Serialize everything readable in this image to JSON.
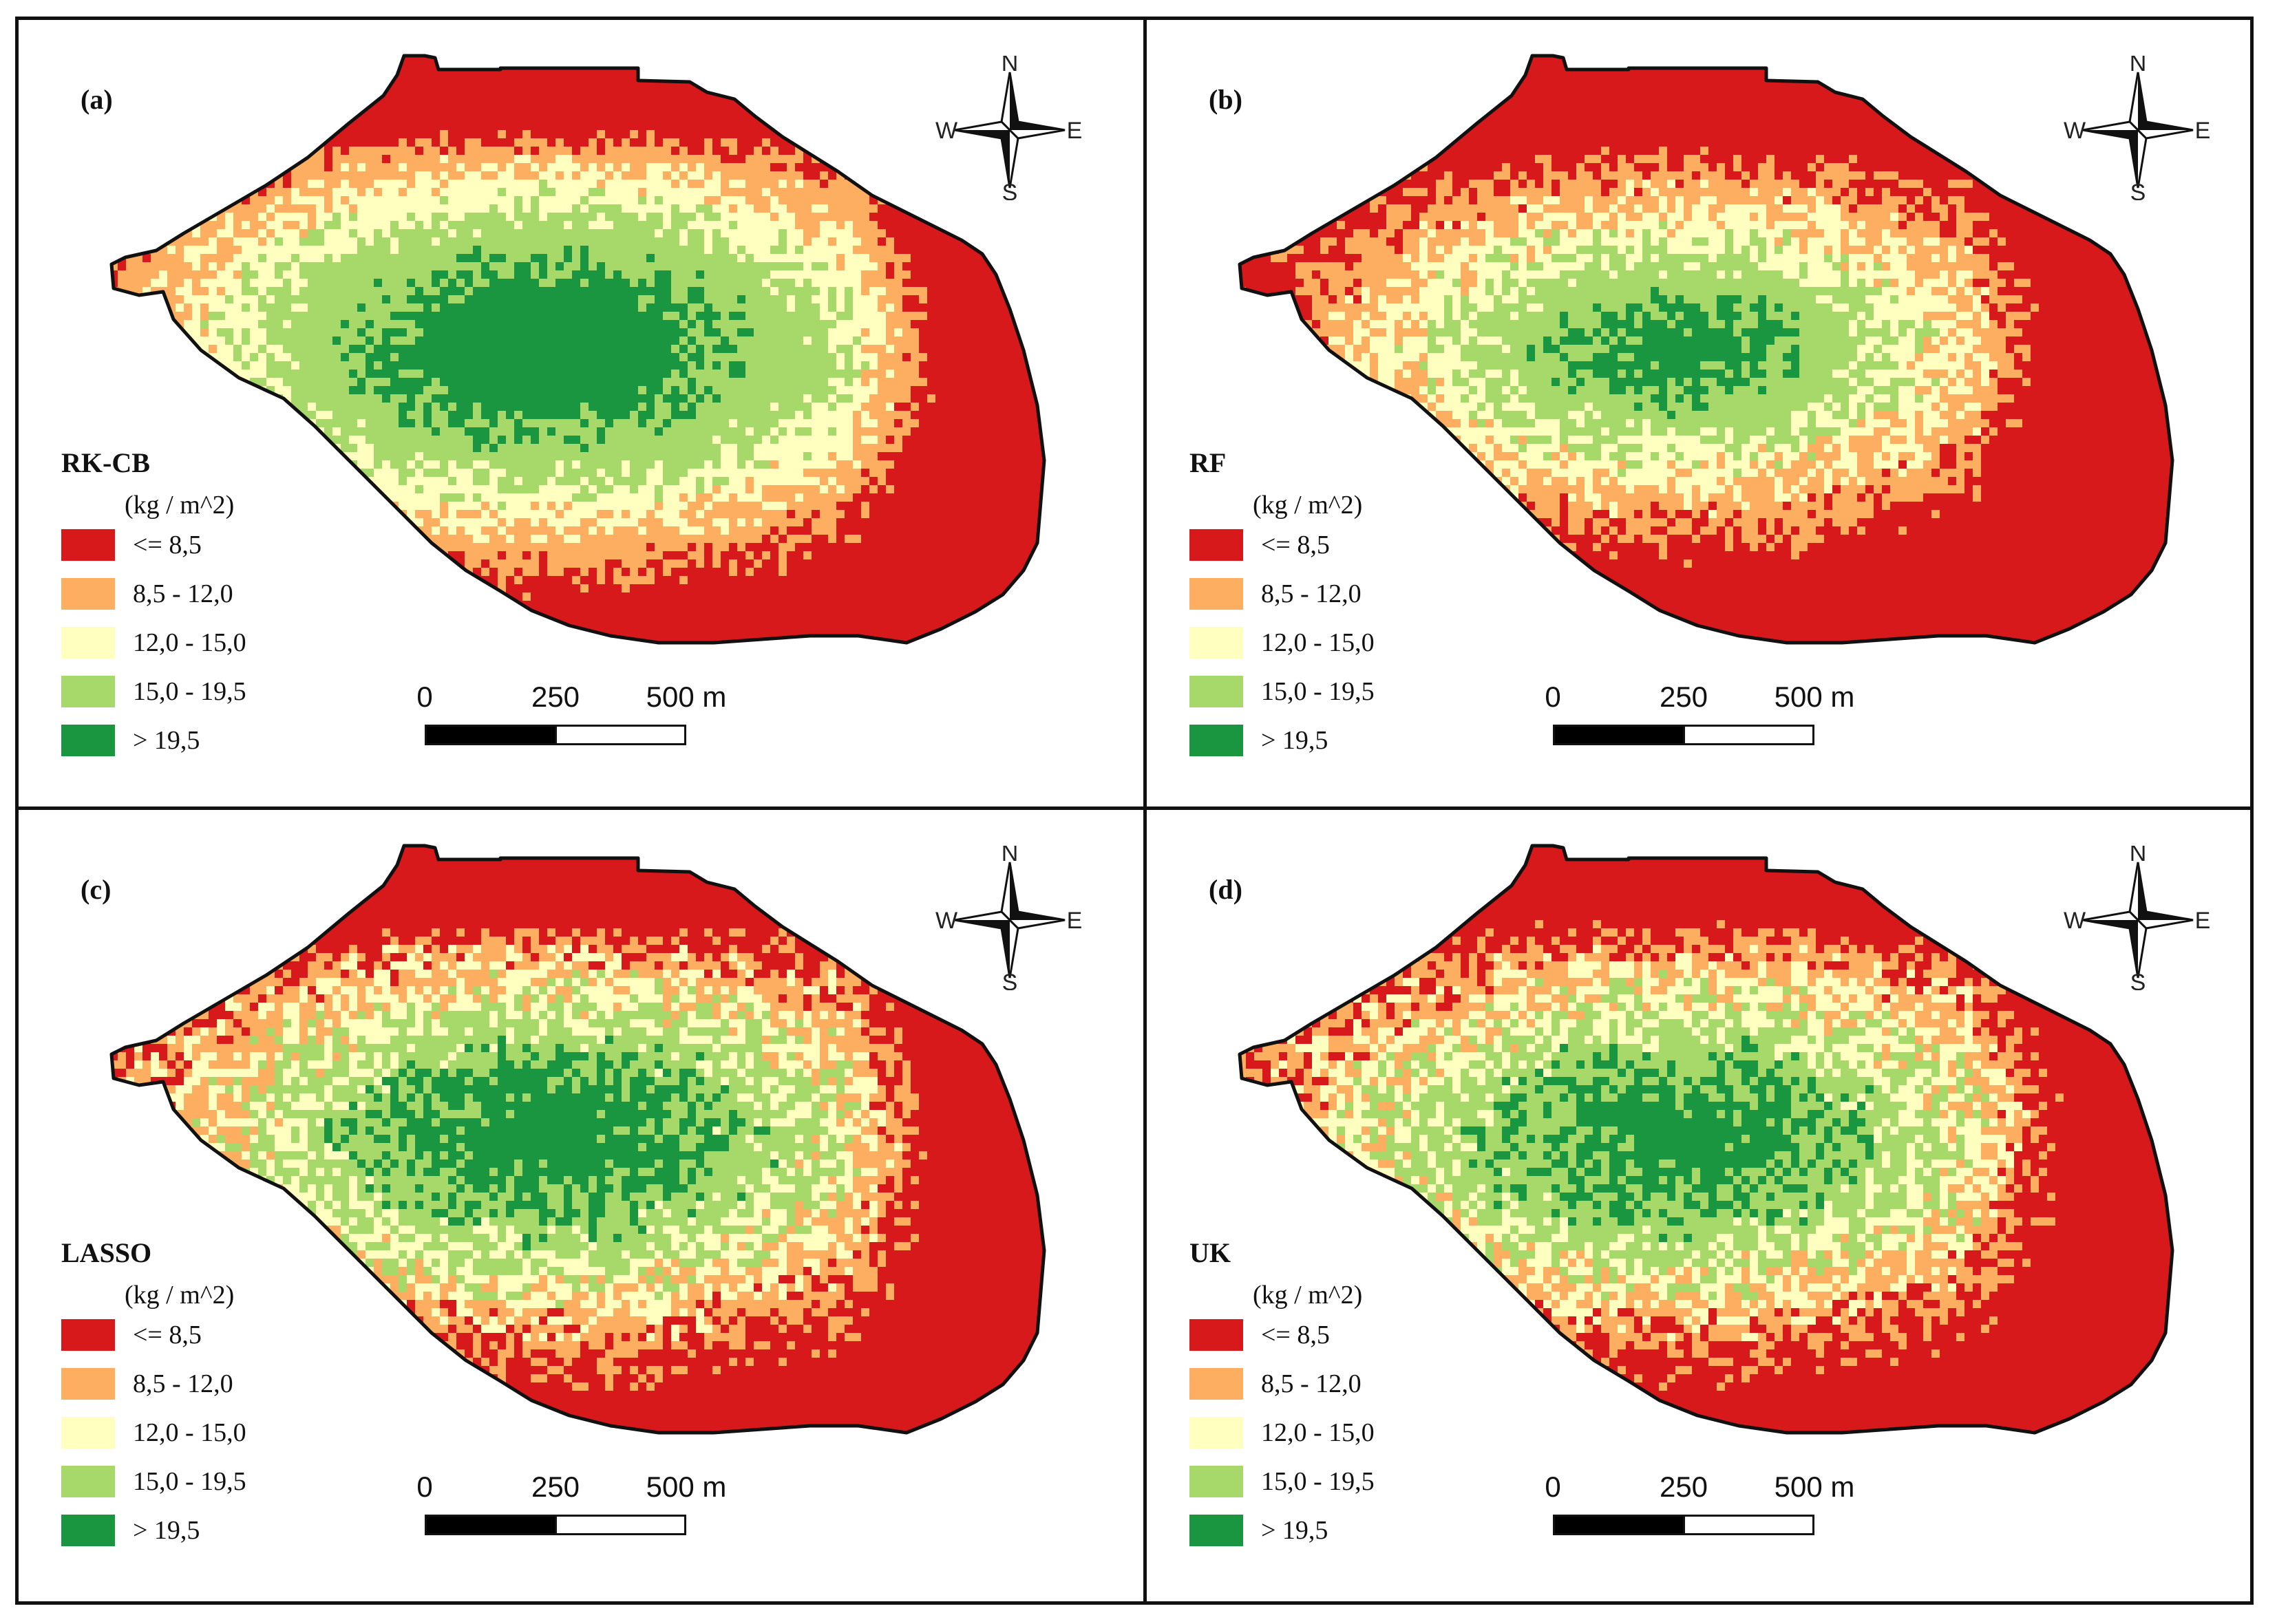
{
  "figure": {
    "compass": {
      "north": "N",
      "south": "S",
      "east": "E",
      "west": "W"
    },
    "unit": "(kg / m^2)",
    "legend_classes": [
      {
        "label": "<= 8,5",
        "color": "#d7191c"
      },
      {
        "label": "8,5 - 12,0",
        "color": "#fdae61"
      },
      {
        "label": "12,0 - 15,0",
        "color": "#ffffbf"
      },
      {
        "label": "15,0 - 19,5",
        "color": "#a6d96a"
      },
      {
        "label": "> 19,5",
        "color": "#1a9641"
      }
    ],
    "scale_bar": {
      "ticks": [
        "0",
        "250",
        "500 m"
      ]
    },
    "boundary_color": "#111111"
  },
  "panels": [
    {
      "letter": "(a)",
      "model": "RK-CB"
    },
    {
      "letter": "(b)",
      "model": "RF"
    },
    {
      "letter": "(c)",
      "model": "LASSO"
    },
    {
      "letter": "(d)",
      "model": "UK"
    }
  ]
}
